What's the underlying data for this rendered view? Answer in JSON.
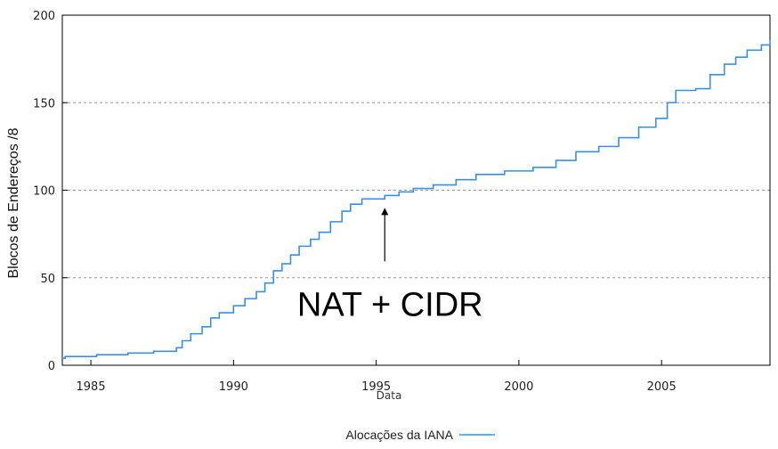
{
  "chart_data": {
    "type": "line",
    "title": "",
    "xlabel": "Data",
    "ylabel": "Blocos de Endereços /8",
    "xlim": [
      1984,
      2008.8
    ],
    "ylim": [
      0,
      200
    ],
    "x_ticks": [
      1985,
      1990,
      1995,
      2000,
      2005
    ],
    "y_ticks": [
      0,
      50,
      100,
      150,
      200
    ],
    "grid": "horizontal dashed",
    "legend_position": "bottom-center",
    "annotation": {
      "text": "NAT + CIDR",
      "x": 1995.3,
      "y": 97
    },
    "colors": {
      "series": "#3a8fe0",
      "grid": "#999999",
      "frame": "#000000"
    },
    "series": [
      {
        "name": "Alocações da IANA",
        "points": [
          [
            1984.0,
            4
          ],
          [
            1984.1,
            5
          ],
          [
            1985.0,
            5
          ],
          [
            1985.2,
            6
          ],
          [
            1986.0,
            6
          ],
          [
            1986.3,
            7
          ],
          [
            1987.0,
            7
          ],
          [
            1987.2,
            8
          ],
          [
            1987.9,
            8
          ],
          [
            1988.0,
            10
          ],
          [
            1988.2,
            14
          ],
          [
            1988.5,
            18
          ],
          [
            1988.9,
            22
          ],
          [
            1989.2,
            27
          ],
          [
            1989.5,
            30
          ],
          [
            1990.0,
            34
          ],
          [
            1990.4,
            38
          ],
          [
            1990.8,
            42
          ],
          [
            1991.1,
            47
          ],
          [
            1991.4,
            54
          ],
          [
            1991.7,
            58
          ],
          [
            1992.0,
            63
          ],
          [
            1992.3,
            68
          ],
          [
            1992.7,
            72
          ],
          [
            1993.0,
            76
          ],
          [
            1993.4,
            82
          ],
          [
            1993.8,
            88
          ],
          [
            1994.1,
            92
          ],
          [
            1994.5,
            95
          ],
          [
            1995.0,
            95
          ],
          [
            1995.3,
            97
          ],
          [
            1995.8,
            99
          ],
          [
            1996.3,
            101
          ],
          [
            1997.0,
            103
          ],
          [
            1997.8,
            106
          ],
          [
            1998.5,
            109
          ],
          [
            1999.5,
            111
          ],
          [
            2000.5,
            113
          ],
          [
            2001.3,
            117
          ],
          [
            2002.0,
            122
          ],
          [
            2002.8,
            125
          ],
          [
            2003.5,
            130
          ],
          [
            2004.2,
            136
          ],
          [
            2004.8,
            141
          ],
          [
            2005.2,
            150
          ],
          [
            2005.5,
            157
          ],
          [
            2006.2,
            158
          ],
          [
            2006.7,
            166
          ],
          [
            2007.2,
            172
          ],
          [
            2007.6,
            176
          ],
          [
            2008.0,
            180
          ],
          [
            2008.5,
            183
          ],
          [
            2008.8,
            186
          ]
        ]
      }
    ]
  }
}
